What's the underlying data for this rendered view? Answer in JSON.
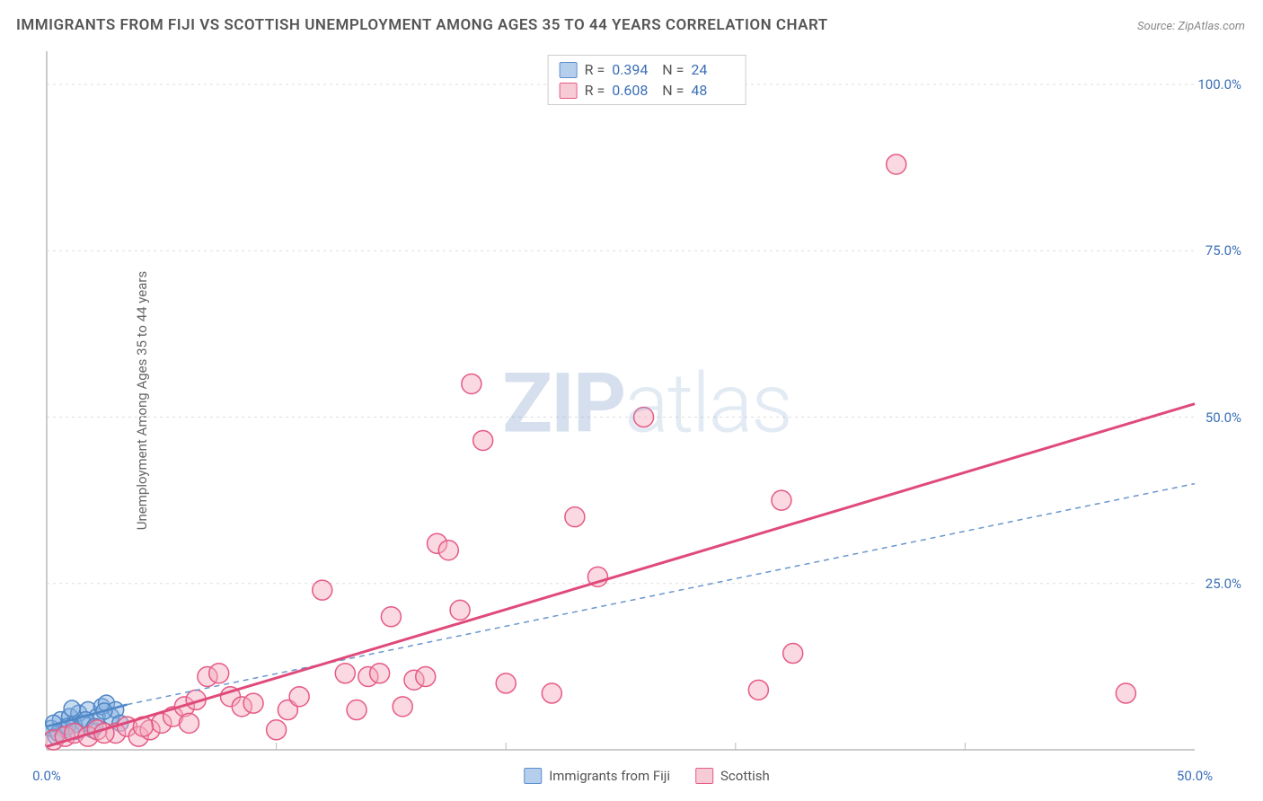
{
  "title": "IMMIGRANTS FROM FIJI VS SCOTTISH UNEMPLOYMENT AMONG AGES 35 TO 44 YEARS CORRELATION CHART",
  "source": "Source: ZipAtlas.com",
  "ylabel": "Unemployment Among Ages 35 to 44 years",
  "watermark_bold": "ZIP",
  "watermark_light": "atlas",
  "chart": {
    "type": "scatter",
    "xlim": [
      0,
      50
    ],
    "ylim": [
      0,
      105
    ],
    "xtick_labels": [
      "0.0%",
      "50.0%"
    ],
    "xtick_positions": [
      0,
      50
    ],
    "xtick_minor": [
      10,
      20,
      30,
      40
    ],
    "ytick_labels": [
      "25.0%",
      "50.0%",
      "75.0%",
      "100.0%"
    ],
    "ytick_positions": [
      25,
      50,
      75,
      100
    ],
    "background_color": "#ffffff",
    "grid_color": "#dddddd",
    "axis_color": "#bbbbbb",
    "series": [
      {
        "name": "Immigrants from Fiji",
        "legend_label": "Immigrants from Fiji",
        "color_fill": "rgba(130,175,225,0.45)",
        "color_stroke": "#4f86c6",
        "swatch_class": "blue",
        "R_label": "R =",
        "R": "0.394",
        "N_label": "N =",
        "N": "24",
        "marker_radius": 9,
        "marker_stroke_width": 1.5,
        "points": [
          [
            0.2,
            3.2
          ],
          [
            0.4,
            2.0
          ],
          [
            0.6,
            4.5
          ],
          [
            0.8,
            3.0
          ],
          [
            1.0,
            5.0
          ],
          [
            1.2,
            3.8
          ],
          [
            1.4,
            5.5
          ],
          [
            1.6,
            4.0
          ],
          [
            1.8,
            6.0
          ],
          [
            2.0,
            3.0
          ],
          [
            2.2,
            5.0
          ],
          [
            2.4,
            6.5
          ],
          [
            2.6,
            7.0
          ],
          [
            2.8,
            5.0
          ],
          [
            3.0,
            6.0
          ],
          [
            3.2,
            4.0
          ],
          [
            0.5,
            2.5
          ],
          [
            0.9,
            3.5
          ],
          [
            1.3,
            2.8
          ],
          [
            1.7,
            4.5
          ],
          [
            2.1,
            3.5
          ],
          [
            2.5,
            5.8
          ],
          [
            0.3,
            4.0
          ],
          [
            1.1,
            6.2
          ]
        ],
        "trend_line": {
          "x1": 0,
          "y1": 3.5,
          "x2": 3.5,
          "y2": 6.8,
          "stroke": "#4f86c6",
          "width": 2.5,
          "dash": ""
        },
        "extrap_line": {
          "x1": 3.5,
          "y1": 6.8,
          "x2": 50,
          "y2": 40,
          "stroke": "#6a96cc",
          "width": 1.5,
          "dash": "6,5"
        }
      },
      {
        "name": "Scottish",
        "legend_label": "Scottish",
        "color_fill": "rgba(244,170,190,0.45)",
        "color_stroke": "#e65a85",
        "swatch_class": "pink",
        "R_label": "R =",
        "R": "0.608",
        "N_label": "N =",
        "N": "48",
        "marker_radius": 11,
        "marker_stroke_width": 1.5,
        "points": [
          [
            0.3,
            1.5
          ],
          [
            0.8,
            2.0
          ],
          [
            1.2,
            2.5
          ],
          [
            1.8,
            2.0
          ],
          [
            2.2,
            3.0
          ],
          [
            3.0,
            2.5
          ],
          [
            3.5,
            3.5
          ],
          [
            4.0,
            2.0
          ],
          [
            4.5,
            3.0
          ],
          [
            5.0,
            4.0
          ],
          [
            5.5,
            5.0
          ],
          [
            6.0,
            6.5
          ],
          [
            6.5,
            7.5
          ],
          [
            7.0,
            11.0
          ],
          [
            7.5,
            11.5
          ],
          [
            8.0,
            8.0
          ],
          [
            8.5,
            6.5
          ],
          [
            9.0,
            7.0
          ],
          [
            10.0,
            3.0
          ],
          [
            10.5,
            6.0
          ],
          [
            11.0,
            8.0
          ],
          [
            12.0,
            24.0
          ],
          [
            13.0,
            11.5
          ],
          [
            13.5,
            6.0
          ],
          [
            14.0,
            11.0
          ],
          [
            14.5,
            11.5
          ],
          [
            15.0,
            20.0
          ],
          [
            15.5,
            6.5
          ],
          [
            16.0,
            10.5
          ],
          [
            16.5,
            11.0
          ],
          [
            17.0,
            31.0
          ],
          [
            17.5,
            30.0
          ],
          [
            18.0,
            21.0
          ],
          [
            18.5,
            55.0
          ],
          [
            19.0,
            46.5
          ],
          [
            20.0,
            10.0
          ],
          [
            22.0,
            8.5
          ],
          [
            23.0,
            35.0
          ],
          [
            24.0,
            26.0
          ],
          [
            26.0,
            50.0
          ],
          [
            31.0,
            9.0
          ],
          [
            32.0,
            37.5
          ],
          [
            32.5,
            14.5
          ],
          [
            37.0,
            88.0
          ],
          [
            47.0,
            8.5
          ],
          [
            2.5,
            2.5
          ],
          [
            4.2,
            3.5
          ],
          [
            6.2,
            4.0
          ]
        ],
        "trend_line": {
          "x1": 0,
          "y1": 0.5,
          "x2": 50,
          "y2": 52,
          "stroke": "#e04a7a",
          "width": 3,
          "dash": ""
        }
      }
    ]
  }
}
